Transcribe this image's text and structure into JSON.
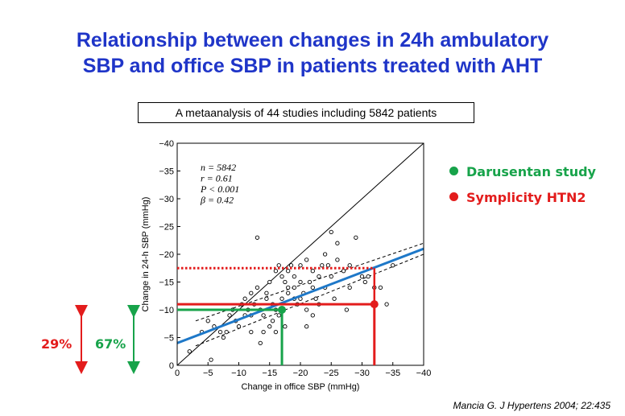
{
  "title_line1": "Relationship between changes in 24h ambulatory",
  "title_line2": "SBP and office SBP in patients treated with AHT",
  "subtitle": "A metaanalysis of 44 studies including 5842 patients",
  "legend": [
    {
      "label": "Darusentan study",
      "color": "#17a34a"
    },
    {
      "label": "Symplicity HTN2",
      "color": "#e31c1c"
    }
  ],
  "percentages": {
    "red": "29%",
    "green": "67%"
  },
  "citation": "Mancia G. J Hypertens 2004; 22:435",
  "chart_data": {
    "type": "scatter",
    "xlabel": "Change in office SBP (mmHg)",
    "ylabel": "Change in 24-h SBP (mmHg)",
    "xlim": [
      0,
      -40
    ],
    "ylim": [
      0,
      -40
    ],
    "x_ticks": [
      "0",
      "−5",
      "−10",
      "−15",
      "−20",
      "−25",
      "−30",
      "−35",
      "−40"
    ],
    "y_ticks": [
      "0",
      "−5",
      "−10",
      "−15",
      "−20",
      "−25",
      "−30",
      "−35",
      "−40"
    ],
    "stats": [
      "n = 5842",
      "r = 0.61",
      "P < 0.001",
      "β = 0.42"
    ],
    "points": [
      [
        -2,
        -2.5
      ],
      [
        -4,
        -6
      ],
      [
        -5,
        -8
      ],
      [
        -5.5,
        -1
      ],
      [
        -6,
        -7
      ],
      [
        -7,
        -6
      ],
      [
        -7.5,
        -5
      ],
      [
        -8,
        -6
      ],
      [
        -8.5,
        -9
      ],
      [
        -9,
        -10
      ],
      [
        -9.5,
        -8
      ],
      [
        -10,
        -7
      ],
      [
        -10.5,
        -11
      ],
      [
        -11,
        -9
      ],
      [
        -11,
        -12
      ],
      [
        -11.5,
        -10
      ],
      [
        -12,
        -6
      ],
      [
        -12,
        -9
      ],
      [
        -12.5,
        -11
      ],
      [
        -13,
        -14
      ],
      [
        -13,
        -23
      ],
      [
        -13.5,
        -10
      ],
      [
        -13.5,
        -4
      ],
      [
        -14,
        -6
      ],
      [
        -14,
        -9
      ],
      [
        -14.5,
        -12
      ],
      [
        -14.5,
        -13
      ],
      [
        -15,
        -7
      ],
      [
        -15,
        -15
      ],
      [
        -15.5,
        -11
      ],
      [
        -15.5,
        -8
      ],
      [
        -16,
        -6
      ],
      [
        -16,
        -10
      ],
      [
        -16.5,
        -9
      ],
      [
        -16.5,
        -18
      ],
      [
        -17,
        -12
      ],
      [
        -17,
        -16
      ],
      [
        -17.5,
        -7
      ],
      [
        -17.5,
        -15
      ],
      [
        -18,
        -13
      ],
      [
        -18,
        -17
      ],
      [
        -18,
        -14
      ],
      [
        -18.5,
        -18
      ],
      [
        -19,
        -12
      ],
      [
        -19,
        -16
      ],
      [
        -19,
        -14
      ],
      [
        -19.5,
        -11
      ],
      [
        -20,
        -15
      ],
      [
        -20,
        -18
      ],
      [
        -20,
        -12
      ],
      [
        -20.5,
        -13
      ],
      [
        -21,
        -7
      ],
      [
        -21,
        -19
      ],
      [
        -21,
        -10
      ],
      [
        -21.5,
        -15
      ],
      [
        -22,
        -17
      ],
      [
        -22,
        -9
      ],
      [
        -22,
        -14
      ],
      [
        -22.5,
        -12
      ],
      [
        -23,
        -16
      ],
      [
        -23,
        -11
      ],
      [
        -23.5,
        -18
      ],
      [
        -24,
        -14
      ],
      [
        -24,
        -20
      ],
      [
        -24.5,
        -18
      ],
      [
        -25,
        -16
      ],
      [
        -25,
        -24
      ],
      [
        -25.5,
        -12
      ],
      [
        -26,
        -19
      ],
      [
        -26,
        -22
      ],
      [
        -27,
        -17
      ],
      [
        -27.5,
        -10
      ],
      [
        -28,
        -14
      ],
      [
        -28,
        -18
      ],
      [
        -29,
        -23
      ],
      [
        -30,
        -16
      ],
      [
        -30.5,
        -15
      ],
      [
        -31,
        -16
      ],
      [
        -32,
        -14
      ],
      [
        -33,
        -14
      ],
      [
        -34,
        -11
      ],
      [
        -35,
        -18
      ],
      [
        -12,
        -13
      ],
      [
        -16,
        -17
      ]
    ],
    "identity_line": [
      [
        0,
        0
      ],
      [
        -40,
        -40
      ]
    ],
    "regression_line": [
      [
        0,
        -4
      ],
      [
        -40,
        -21
      ]
    ],
    "ci_upper": [
      [
        -3,
        -8
      ],
      [
        -40,
        -22
      ]
    ],
    "ci_lower": [
      [
        -3,
        -3.5
      ],
      [
        -40,
        -20
      ]
    ],
    "darusentan": {
      "x": -17,
      "y": -10,
      "color": "#17a34a"
    },
    "symplicity": {
      "x": -32,
      "y": -11,
      "color": "#e31c1c"
    },
    "red_dotted_y": -17.5,
    "red_dotted_x": -32,
    "regression_color": "#1e78c8"
  }
}
